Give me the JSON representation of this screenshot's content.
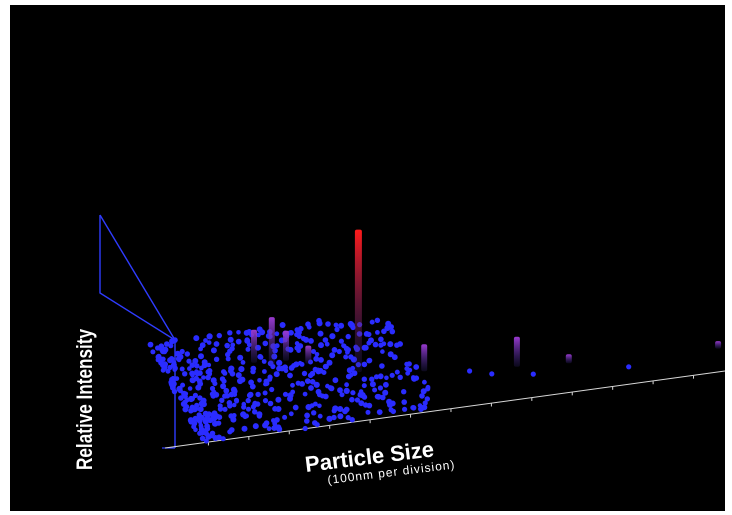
{
  "chart_data": {
    "type": "scatter",
    "title": "",
    "xlabel": "Particle Size",
    "xlabel_unit": "(100nm per division)",
    "ylabel": "Relative Intensity",
    "grid": false,
    "colors": {
      "background": "#000000",
      "frame": "#2f3cff",
      "point": "#2a2cff",
      "peak_low": "#3a2a8a",
      "peak_high": "#ff1a1a",
      "floor_axis": "#d8d8d8"
    },
    "spikes": [
      {
        "x": 3.2,
        "z": 0.62,
        "intensity": 0.22
      },
      {
        "x": 3.6,
        "z": 0.58,
        "intensity": 0.32
      },
      {
        "x": 4.0,
        "z": 0.6,
        "intensity": 0.2
      },
      {
        "x": 4.5,
        "z": 0.55,
        "intensity": 0.12
      },
      {
        "x": 5.6,
        "z": 0.42,
        "intensity": 0.95
      },
      {
        "x": 7.2,
        "z": 0.35,
        "intensity": 0.18
      },
      {
        "x": 9.5,
        "z": 0.28,
        "intensity": 0.2
      },
      {
        "x": 10.8,
        "z": 0.25,
        "intensity": 0.06
      },
      {
        "x": 14.6,
        "z": 0.2,
        "intensity": 0.05
      }
    ]
  }
}
